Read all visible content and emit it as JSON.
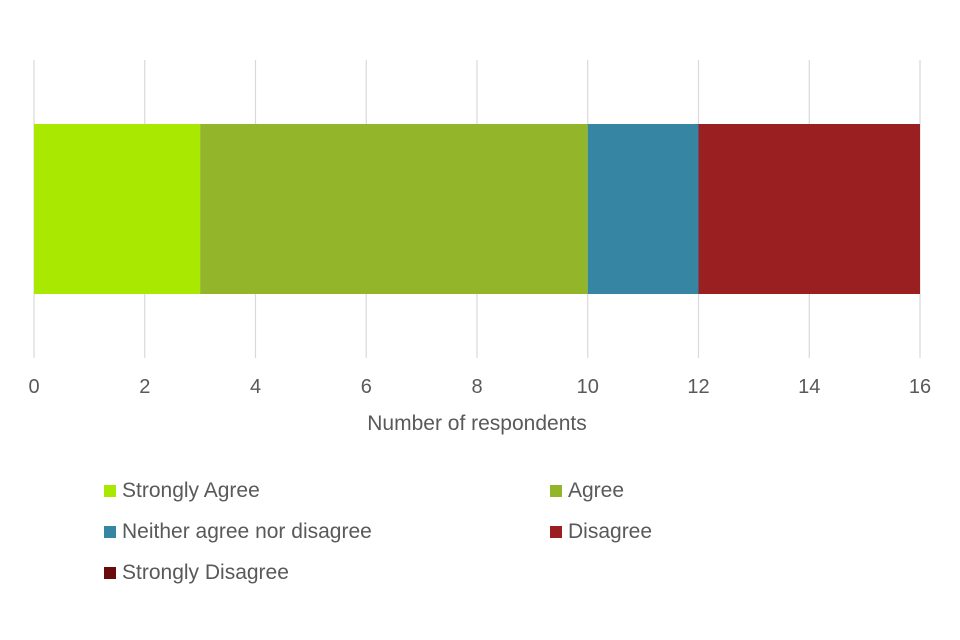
{
  "chart_data": {
    "type": "bar",
    "orientation": "horizontal",
    "stacked": true,
    "categories": [
      ""
    ],
    "series": [
      {
        "name": "Strongly Agree",
        "values": [
          3
        ],
        "color": "#a9e800"
      },
      {
        "name": "Agree",
        "values": [
          7
        ],
        "color": "#92b52a"
      },
      {
        "name": "Neither agree nor disagree",
        "values": [
          2
        ],
        "color": "#3686a3"
      },
      {
        "name": "Disagree",
        "values": [
          4
        ],
        "color": "#9a1f21"
      },
      {
        "name": "Strongly Disagree",
        "values": [
          0
        ],
        "color": "#6b0a0a"
      }
    ],
    "xlabel": "Number of respondents",
    "ylabel": "",
    "xlim": [
      0,
      16
    ],
    "xticks": [
      "0",
      "2",
      "4",
      "6",
      "8",
      "10",
      "12",
      "14",
      "16"
    ],
    "grid": true,
    "legend_position": "bottom"
  }
}
